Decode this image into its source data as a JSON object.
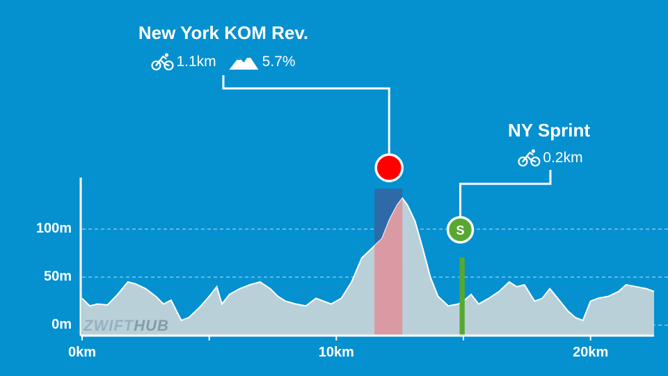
{
  "chart_data": {
    "type": "area",
    "x_unit": "km",
    "y_unit": "m",
    "xlim": [
      0,
      22.5
    ],
    "ylim": [
      -10,
      155
    ],
    "x_ticks": [
      0,
      5,
      10,
      15,
      20
    ],
    "x_tick_labels": [
      "0km",
      "",
      "10km",
      "",
      "20km"
    ],
    "y_gridlines": [
      0,
      50,
      100
    ],
    "y_tick_labels": [
      "0m",
      "50m",
      "100m"
    ],
    "elevation_profile": {
      "x": [
        0,
        0.3,
        0.6,
        1.0,
        1.4,
        1.8,
        2.1,
        2.5,
        2.9,
        3.2,
        3.5,
        3.9,
        4.2,
        4.6,
        5.0,
        5.3,
        5.5,
        5.8,
        6.2,
        6.6,
        7.0,
        7.4,
        7.7,
        8.0,
        8.4,
        8.8,
        9.2,
        9.5,
        9.8,
        10.2,
        10.6,
        11.0,
        11.4,
        11.8,
        12.1,
        12.4,
        12.6,
        12.8,
        13.1,
        13.4,
        13.7,
        14.0,
        14.4,
        14.8,
        15.0,
        15.3,
        15.6,
        16.0,
        16.4,
        16.8,
        17.1,
        17.4,
        17.8,
        18.1,
        18.4,
        18.8,
        19.1,
        19.4,
        19.7,
        20.0,
        20.3,
        20.7,
        21.1,
        21.4,
        21.8,
        22.2,
        22.5
      ],
      "y": [
        28,
        20,
        22,
        21,
        32,
        45,
        43,
        38,
        30,
        22,
        26,
        5,
        8,
        18,
        30,
        40,
        22,
        32,
        38,
        42,
        45,
        38,
        30,
        25,
        22,
        20,
        28,
        25,
        22,
        28,
        45,
        70,
        80,
        90,
        110,
        125,
        132,
        125,
        108,
        80,
        50,
        30,
        20,
        22,
        25,
        32,
        22,
        28,
        35,
        45,
        40,
        42,
        25,
        28,
        38,
        25,
        15,
        8,
        5,
        25,
        28,
        30,
        35,
        42,
        40,
        38,
        35
      ]
    }
  },
  "segments": [
    {
      "name": "New York KOM Rev.",
      "type": "kom",
      "distance": "1.1km",
      "gradient": "5.7%",
      "start_km": 11.5,
      "end_km": 12.6,
      "marker_color": "#ff0000",
      "band_color": "#2e6aa8",
      "fill_color": "#d99aa3"
    },
    {
      "name": "NY Sprint",
      "type": "sprint",
      "marker_label": "S",
      "distance": "0.2km",
      "start_km": 14.85,
      "end_km": 15.05,
      "marker_color": "#57a832",
      "fill_color": "#57a832"
    }
  ],
  "watermark": {
    "part1": "ZWIFT",
    "part2": "HUB"
  },
  "colors": {
    "background": "#0590d0",
    "profile_fill": "#b9d0d9",
    "profile_stroke": "#ffffff",
    "grid": "#9fd2ec"
  }
}
